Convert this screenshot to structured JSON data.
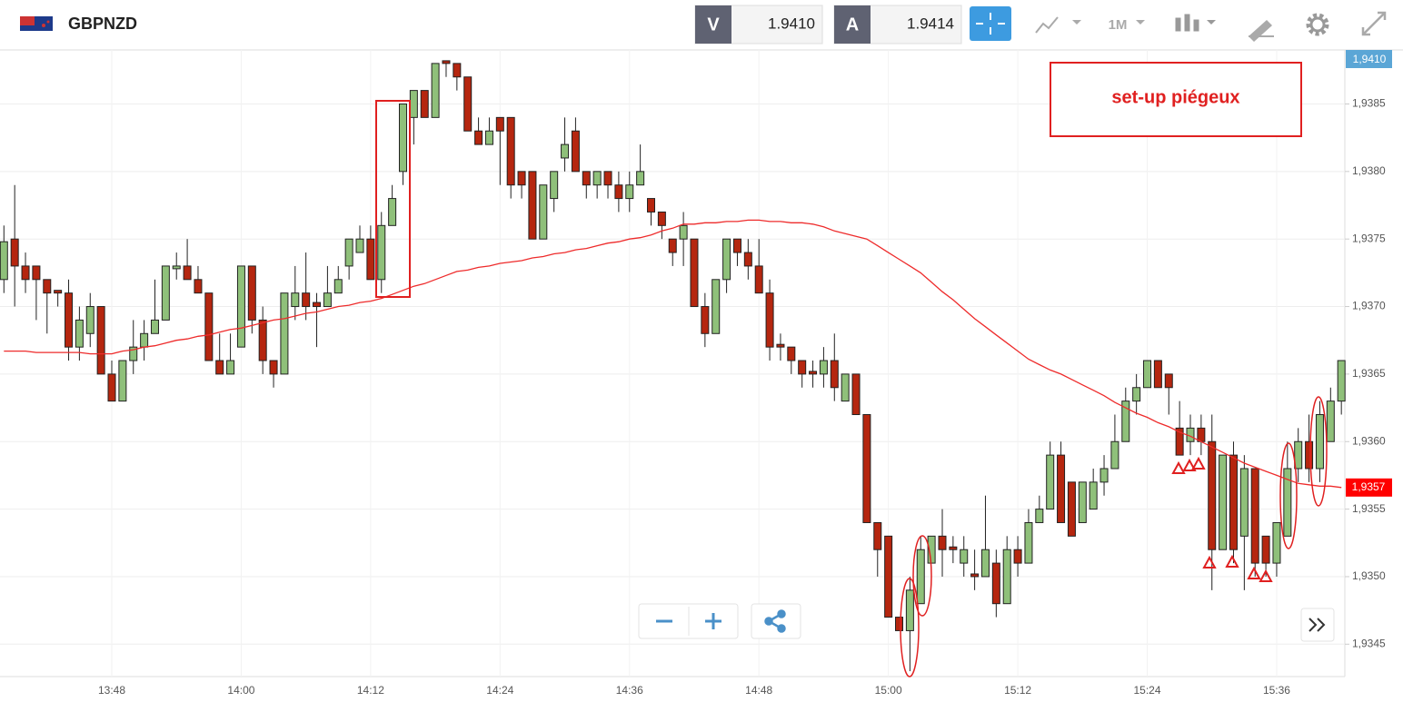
{
  "header": {
    "symbol": "GBPNZD",
    "bid_label": "V",
    "bid": "1.9410",
    "ask_label": "A",
    "ask": "1.9414",
    "timeframe": "1M"
  },
  "chart_data": {
    "type": "candlestick",
    "categories": [
      null,
      null,
      null,
      null,
      null,
      null,
      null,
      null,
      null,
      null,
      "13:48",
      null,
      null,
      null,
      null,
      null,
      null,
      null,
      null,
      null,
      null,
      null,
      "14:00",
      null,
      null,
      null,
      null,
      null,
      null,
      null,
      null,
      null,
      null,
      null,
      "14:12",
      null,
      null,
      null,
      null,
      null,
      null,
      null,
      null,
      null,
      null,
      null,
      "14:24",
      null,
      null,
      null,
      null,
      null,
      null,
      null,
      null,
      null,
      null,
      null,
      "14:36",
      null,
      null,
      null,
      null,
      null,
      null,
      null,
      null,
      null,
      null,
      null,
      "14:48",
      null,
      null,
      null,
      null,
      null,
      null,
      null,
      null,
      null,
      null,
      null,
      "15:00",
      null,
      null,
      null,
      null,
      null,
      null,
      null,
      null,
      null,
      null,
      null,
      "15:12",
      null,
      null,
      null,
      null,
      null,
      null,
      null,
      null,
      null,
      null,
      null,
      "15:24",
      null,
      null,
      null,
      null,
      null,
      null,
      null,
      null,
      null,
      null,
      null,
      "15:36",
      null,
      null,
      null,
      null,
      null,
      null
    ],
    "open": [
      1.9372,
      1.9375,
      1.9373,
      1.9373,
      1.9372,
      1.93712,
      1.9371,
      1.9367,
      1.9368,
      1.937,
      1.9365,
      1.9363,
      1.9366,
      1.9367,
      1.9368,
      1.9369,
      1.93728,
      1.9373,
      1.9372,
      1.9371,
      1.9366,
      1.9365,
      1.9367,
      1.9373,
      1.9369,
      1.9366,
      1.9365,
      1.937,
      1.9371,
      1.93703,
      1.937,
      1.9371,
      1.9373,
      1.9374,
      1.9375,
      1.9372,
      1.9376,
      1.938,
      1.9384,
      1.9386,
      1.9384,
      1.93882,
      1.9388,
      1.9387,
      1.9383,
      1.9382,
      1.9384,
      1.9384,
      1.938,
      1.938,
      1.9375,
      1.9378,
      1.9381,
      1.9383,
      1.938,
      1.9379,
      1.938,
      1.9379,
      1.9378,
      1.9379,
      1.9378,
      1.9377,
      1.9375,
      1.9375,
      1.9375,
      1.937,
      1.9368,
      1.9372,
      1.9375,
      1.9374,
      1.9373,
      1.9371,
      1.93672,
      1.9367,
      1.9366,
      1.93652,
      1.9365,
      1.9366,
      1.9363,
      1.9365,
      1.9362,
      1.9354,
      1.9353,
      1.9347,
      1.9346,
      1.9348,
      1.9351,
      1.9353,
      1.93522,
      1.9351,
      1.93502,
      1.935,
      1.9351,
      1.9348,
      1.9352,
      1.9351,
      1.9354,
      1.9355,
      1.9359,
      1.9357,
      1.9354,
      1.9355,
      1.9357,
      1.9358,
      1.936,
      1.9363,
      1.9364,
      1.9366,
      1.9365,
      1.9361,
      1.936,
      1.9361,
      1.936,
      1.9352,
      1.9359,
      1.9353,
      1.9358,
      1.9353,
      1.9351,
      1.9353,
      1.9358,
      1.936,
      1.9358,
      1.936,
      1.9363
    ],
    "high": [
      1.9376,
      1.9379,
      1.9374,
      1.9373,
      1.9372,
      1.9371,
      1.9372,
      1.937,
      1.9371,
      1.937,
      1.9366,
      1.9366,
      1.9369,
      1.9369,
      1.9372,
      1.9373,
      1.9374,
      1.9375,
      1.9373,
      1.9371,
      1.9368,
      1.9368,
      1.9373,
      1.9373,
      1.937,
      1.9366,
      1.9371,
      1.9373,
      1.9374,
      1.9371,
      1.9373,
      1.9373,
      1.9375,
      1.9376,
      1.9376,
      1.9377,
      1.9379,
      1.9385,
      1.9386,
      1.9386,
      1.9388,
      1.9388,
      1.9388,
      1.9387,
      1.9384,
      1.9384,
      1.9384,
      1.9384,
      1.938,
      1.938,
      1.9379,
      1.938,
      1.9384,
      1.9384,
      1.938,
      1.938,
      1.938,
      1.938,
      1.938,
      1.9382,
      1.9378,
      1.9377,
      1.9375,
      1.9377,
      1.9375,
      1.9371,
      1.9372,
      1.9375,
      1.9375,
      1.9375,
      1.9375,
      1.9372,
      1.9368,
      1.9367,
      1.9366,
      1.9366,
      1.9367,
      1.9368,
      1.9365,
      1.9365,
      1.9362,
      1.9354,
      1.9353,
      1.9347,
      1.935,
      1.9353,
      1.9353,
      1.9355,
      1.9353,
      1.9353,
      1.9352,
      1.9356,
      1.9352,
      1.9353,
      1.9353,
      1.9355,
      1.9356,
      1.936,
      1.936,
      1.9357,
      1.9357,
      1.9358,
      1.9359,
      1.9362,
      1.9364,
      1.9365,
      1.9366,
      1.9366,
      1.9365,
      1.9363,
      1.9362,
      1.9362,
      1.9362,
      1.9359,
      1.936,
      1.9359,
      1.9358,
      1.9353,
      1.9354,
      1.936,
      1.9361,
      1.9362,
      1.9363,
      1.9364,
      1.9366
    ],
    "low": [
      1.9371,
      1.937,
      1.9371,
      1.9369,
      1.9368,
      1.937,
      1.9366,
      1.9366,
      1.9367,
      1.9365,
      1.9363,
      1.9363,
      1.9365,
      1.9366,
      1.9368,
      1.9369,
      1.9372,
      1.9372,
      1.9371,
      1.9366,
      1.9365,
      1.9365,
      1.9367,
      1.9368,
      1.9365,
      1.9364,
      1.9365,
      1.9369,
      1.9369,
      1.9367,
      1.937,
      1.9371,
      1.9372,
      1.9374,
      1.9372,
      1.9371,
      1.9376,
      1.9379,
      1.9382,
      1.9384,
      1.9384,
      1.9387,
      1.9386,
      1.9383,
      1.9382,
      1.9382,
      1.9379,
      1.9378,
      1.9378,
      1.9375,
      1.9375,
      1.9377,
      1.938,
      1.938,
      1.9378,
      1.9378,
      1.9378,
      1.9377,
      1.9377,
      1.9379,
      1.9376,
      1.9375,
      1.9373,
      1.9373,
      1.937,
      1.9367,
      1.9368,
      1.9371,
      1.9373,
      1.9372,
      1.9371,
      1.9366,
      1.9366,
      1.9365,
      1.9364,
      1.9364,
      1.9364,
      1.9363,
      1.9363,
      1.9362,
      1.9354,
      1.935,
      1.9347,
      1.9346,
      1.9343,
      1.9348,
      1.9351,
      1.935,
      1.9351,
      1.935,
      1.9349,
      1.935,
      1.9347,
      1.9348,
      1.935,
      1.9351,
      1.9354,
      1.9355,
      1.9354,
      1.9353,
      1.9354,
      1.9355,
      1.9356,
      1.9358,
      1.936,
      1.9362,
      1.9364,
      1.9364,
      1.9362,
      1.9359,
      1.9359,
      1.9359,
      1.9349,
      1.9352,
      1.9351,
      1.9349,
      1.935,
      1.935,
      1.935,
      1.9353,
      1.9357,
      1.9357,
      1.9357,
      1.936,
      1.9362
    ],
    "close": [
      1.93748,
      1.9373,
      1.9372,
      1.9372,
      1.9371,
      1.9371,
      1.9367,
      1.9369,
      1.937,
      1.9365,
      1.9363,
      1.9366,
      1.9367,
      1.9368,
      1.9369,
      1.9373,
      1.9373,
      1.9372,
      1.9371,
      1.9366,
      1.9365,
      1.9366,
      1.9373,
      1.9369,
      1.9366,
      1.9365,
      1.9371,
      1.9371,
      1.937,
      1.937,
      1.9371,
      1.9372,
      1.9375,
      1.9375,
      1.9372,
      1.9376,
      1.9378,
      1.9385,
      1.9386,
      1.9384,
      1.9388,
      1.9388,
      1.9387,
      1.9383,
      1.9382,
      1.9383,
      1.9383,
      1.9379,
      1.9379,
      1.9375,
      1.9379,
      1.938,
      1.9382,
      1.938,
      1.9379,
      1.938,
      1.9379,
      1.9378,
      1.9379,
      1.938,
      1.9377,
      1.9376,
      1.9374,
      1.9376,
      1.937,
      1.9368,
      1.9372,
      1.9375,
      1.9374,
      1.9373,
      1.9371,
      1.9367,
      1.9367,
      1.9366,
      1.9365,
      1.9365,
      1.9366,
      1.9364,
      1.9365,
      1.9362,
      1.9354,
      1.9352,
      1.9347,
      1.9346,
      1.9349,
      1.9352,
      1.9353,
      1.9352,
      1.9352,
      1.9352,
      1.935,
      1.9352,
      1.9348,
      1.9352,
      1.9351,
      1.9354,
      1.9355,
      1.9359,
      1.9354,
      1.9353,
      1.9357,
      1.9357,
      1.9358,
      1.936,
      1.9363,
      1.9364,
      1.9366,
      1.9364,
      1.9364,
      1.9359,
      1.9361,
      1.936,
      1.9352,
      1.9359,
      1.9352,
      1.9358,
      1.9351,
      1.9351,
      1.9354,
      1.9358,
      1.936,
      1.9358,
      1.9362,
      1.9363,
      1.9366
    ],
    "up_color": "#8fc07a",
    "down_color": "#b5260f",
    "moving_average": {
      "color": "#ee2b2b",
      "values": [
        1.93667,
        1.93667,
        1.93667,
        1.93666,
        1.93666,
        1.93666,
        1.93666,
        1.93666,
        1.93665,
        1.93665,
        1.93665,
        1.93667,
        1.93668,
        1.9367,
        1.93671,
        1.93673,
        1.93675,
        1.93676,
        1.93678,
        1.93679,
        1.93681,
        1.93683,
        1.93684,
        1.93686,
        1.93688,
        1.9369,
        1.93691,
        1.93693,
        1.93695,
        1.93696,
        1.93698,
        1.937,
        1.93701,
        1.93703,
        1.93704,
        1.93706,
        1.93709,
        1.93712,
        1.93715,
        1.93717,
        1.9372,
        1.93723,
        1.93726,
        1.93727,
        1.93729,
        1.9373,
        1.93732,
        1.93733,
        1.93734,
        1.93736,
        1.93737,
        1.93739,
        1.9374,
        1.93742,
        1.93743,
        1.93745,
        1.93747,
        1.93748,
        1.9375,
        1.93751,
        1.93753,
        1.93756,
        1.93758,
        1.93761,
        1.93761,
        1.93762,
        1.93762,
        1.93763,
        1.93763,
        1.93764,
        1.93764,
        1.93763,
        1.93763,
        1.93762,
        1.93762,
        1.93761,
        1.93759,
        1.93756,
        1.93754,
        1.93752,
        1.9375,
        1.93745,
        1.9374,
        1.93735,
        1.9373,
        1.93725,
        1.93718,
        1.93711,
        1.93705,
        1.93698,
        1.93691,
        1.93685,
        1.93679,
        1.93673,
        1.93667,
        1.93661,
        1.93657,
        1.93653,
        1.9365,
        1.93646,
        1.93642,
        1.93638,
        1.93634,
        1.93629,
        1.93625,
        1.93621,
        1.93618,
        1.93614,
        1.93611,
        1.93607,
        1.93604,
        1.936,
        1.93596,
        1.93592,
        1.93588,
        1.93584,
        1.93581,
        1.93578,
        1.93575,
        1.93572,
        1.93569,
        1.93568,
        1.93567,
        1.93567,
        1.93566
      ]
    },
    "ylim": [
      1.93426,
      1.9389
    ],
    "yticks": [
      {
        "value": 1.9345,
        "label": "1,9345"
      },
      {
        "value": 1.935,
        "label": "1,9350"
      },
      {
        "value": 1.9355,
        "label": "1,9355"
      },
      {
        "value": 1.936,
        "label": "1,9360"
      },
      {
        "value": 1.9365,
        "label": "1,9365"
      },
      {
        "value": 1.937,
        "label": "1,9370"
      },
      {
        "value": 1.9375,
        "label": "1,9375"
      },
      {
        "value": 1.938,
        "label": "1,9380"
      },
      {
        "value": 1.9385,
        "label": "1,9385"
      }
    ],
    "grid": true,
    "top_price_tag": "1,9410",
    "last_price": {
      "value": 1.93566,
      "label": "1,9357"
    },
    "annotation": "set-up piégeux"
  }
}
